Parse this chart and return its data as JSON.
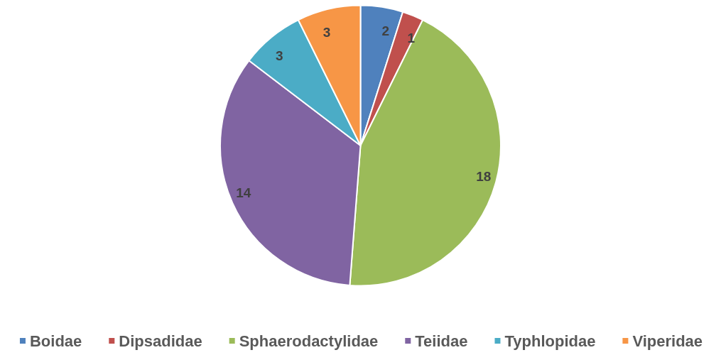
{
  "chart_data": {
    "type": "pie",
    "categories": [
      "Boidae",
      "Dipsadidae",
      "Sphaerodactylidae",
      "Teiidae",
      "Typhlopidae",
      "Viperidae"
    ],
    "values": [
      2,
      1,
      18,
      14,
      3,
      3
    ],
    "colors": [
      "#4f81bd",
      "#c0504d",
      "#9bbb59",
      "#8064a2",
      "#4bacc6",
      "#f79646"
    ],
    "data_labels": true,
    "legend": "bottom"
  }
}
